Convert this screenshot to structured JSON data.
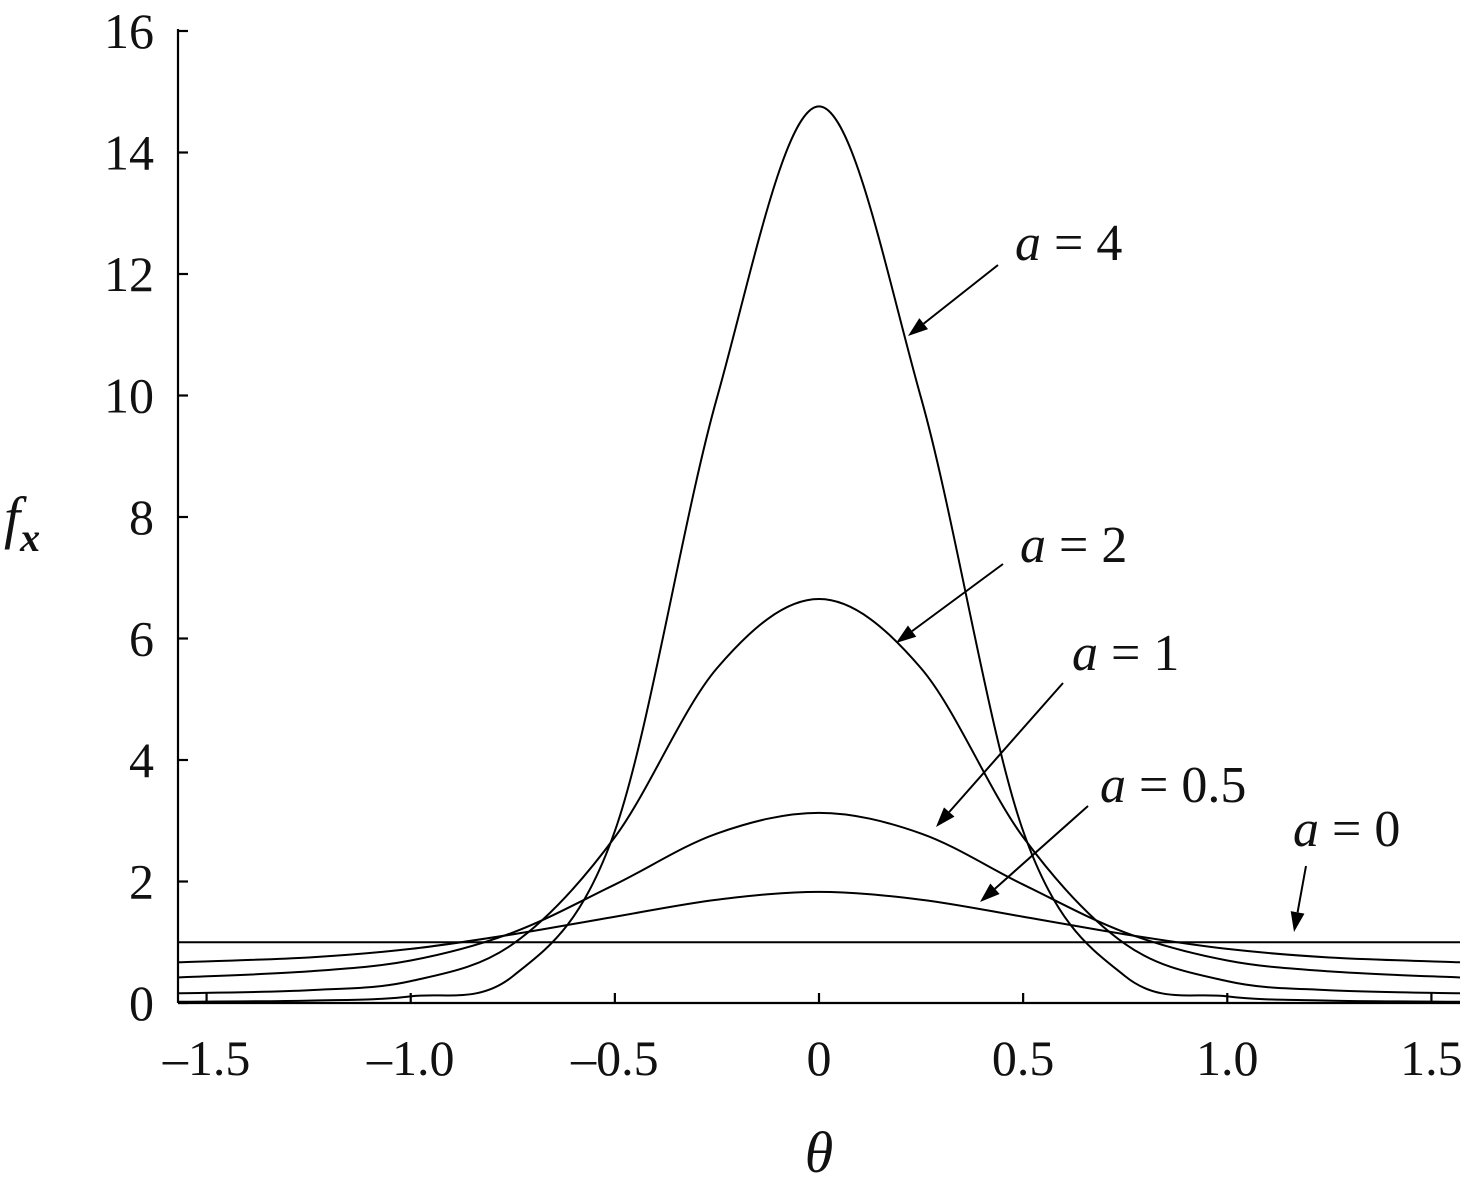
{
  "chart_data": {
    "type": "line",
    "title": "",
    "xlabel": "θ",
    "ylabel": "f",
    "ylabel_sub": "x",
    "xlim": [
      -1.57,
      1.57
    ],
    "ylim": [
      0,
      16
    ],
    "x_ticks": [
      -1.5,
      -1.0,
      -0.5,
      0,
      0.5,
      1.0,
      1.5
    ],
    "x_tick_labels": [
      "–1.5",
      "–1.0",
      "–0.5",
      "0",
      "0.5",
      "1.0",
      "1.5"
    ],
    "y_ticks": [
      0,
      2,
      4,
      6,
      8,
      10,
      12,
      14,
      16
    ],
    "y_tick_labels": [
      "0",
      "2",
      "4",
      "6",
      "8",
      "10",
      "12",
      "14",
      "16"
    ],
    "grid": false,
    "legend": "none",
    "series": [
      {
        "label": "a = 0",
        "x": [
          -1.57,
          -1.25,
          -1.0,
          -0.75,
          -0.5,
          -0.25,
          0,
          0.25,
          0.5,
          0.75,
          1.0,
          1.25,
          1.57
        ],
        "values": [
          1.0,
          1.0,
          1.0,
          1.0,
          1.0,
          1.0,
          1.0,
          1.0,
          1.0,
          1.0,
          1.0,
          1.0,
          1.0
        ]
      },
      {
        "label": "a = 0.5",
        "x": [
          -1.57,
          -1.25,
          -1.0,
          -0.75,
          -0.5,
          -0.25,
          0,
          0.25,
          0.5,
          0.75,
          1.0,
          1.25,
          1.57
        ],
        "values": [
          0.67,
          0.75,
          0.89,
          1.13,
          1.42,
          1.7,
          1.83,
          1.7,
          1.42,
          1.13,
          0.89,
          0.75,
          0.67
        ]
      },
      {
        "label": "a = 1",
        "x": [
          -1.57,
          -1.25,
          -1.0,
          -0.75,
          -0.5,
          -0.25,
          0,
          0.25,
          0.5,
          0.75,
          1.0,
          1.25,
          1.57
        ],
        "values": [
          0.42,
          0.52,
          0.7,
          1.16,
          1.95,
          2.79,
          3.13,
          2.79,
          1.95,
          1.16,
          0.7,
          0.52,
          0.42
        ]
      },
      {
        "label": "a = 2",
        "x": [
          -1.57,
          -1.25,
          -1.0,
          -0.75,
          -0.5,
          -0.25,
          0,
          0.25,
          0.5,
          0.75,
          1.0,
          1.25,
          1.57
        ],
        "values": [
          0.16,
          0.21,
          0.36,
          0.97,
          2.73,
          5.51,
          6.65,
          5.51,
          2.73,
          0.97,
          0.36,
          0.21,
          0.16
        ]
      },
      {
        "label": "a = 4",
        "x": [
          -1.57,
          -1.25,
          -1.0,
          -0.75,
          -0.5,
          -0.25,
          0,
          0.25,
          0.5,
          0.75,
          1.0,
          1.25,
          1.57
        ],
        "values": [
          0.02,
          0.04,
          0.11,
          0.44,
          2.83,
          9.96,
          14.76,
          9.96,
          2.83,
          0.44,
          0.11,
          0.04,
          0.02
        ]
      }
    ],
    "annotations": [
      {
        "series": "a = 4",
        "text_var": "a",
        "text_rest": " = 4"
      },
      {
        "series": "a = 2",
        "text_var": "a",
        "text_rest": " = 2"
      },
      {
        "series": "a = 1",
        "text_var": "a",
        "text_rest": " = 1"
      },
      {
        "series": "a = 0.5",
        "text_var": "a",
        "text_rest": " = 0.5"
      },
      {
        "series": "a = 0",
        "text_var": "a",
        "text_rest": " = 0"
      }
    ]
  }
}
